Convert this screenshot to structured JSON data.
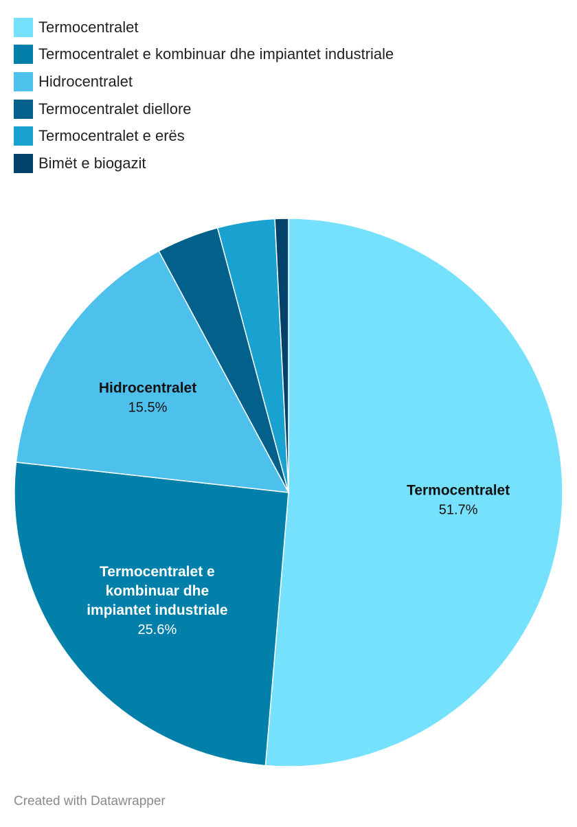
{
  "chart_data": {
    "type": "pie",
    "series": [
      {
        "name": "Termocentralet",
        "value": 51.7,
        "color": "#75e1fd",
        "label_lines": [
          "Termocentralet"
        ],
        "label_color": "#111111",
        "show_label": true
      },
      {
        "name": "Termocentralet e kombinuar dhe impiantet industriale",
        "value": 25.6,
        "color": "#0280aa",
        "label_lines": [
          "Termocentralet e",
          "kombinuar dhe",
          "impiantet industriale"
        ],
        "label_color": "#ffffff",
        "show_label": true
      },
      {
        "name": "Hidrocentralet",
        "value": 15.5,
        "color": "#4dc0ec",
        "label_lines": [
          "Hidrocentralet"
        ],
        "label_color": "#111111",
        "show_label": true
      },
      {
        "name": "Termocentralet diellore",
        "value": 3.7,
        "color": "#02608a",
        "show_label": false
      },
      {
        "name": "Termocentralet e erës",
        "value": 3.4,
        "color": "#19a2d0",
        "show_label": false
      },
      {
        "name": "Bimët e biogazit",
        "value": 0.8,
        "color": "#02416a",
        "show_label": false
      }
    ],
    "value_suffix": "%",
    "legend_position": "top-left"
  },
  "footer": {
    "credit": "Created with Datawrapper"
  }
}
